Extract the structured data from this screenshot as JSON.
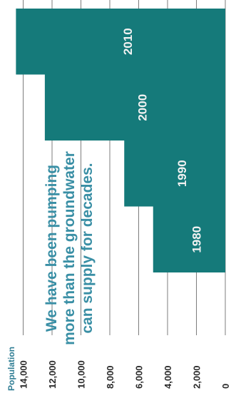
{
  "chart_data": {
    "type": "bar",
    "orientation": "horizontal",
    "ylabel": "Population",
    "ylim": [
      0,
      14000
    ],
    "yticks": [
      0,
      2000,
      4000,
      6000,
      8000,
      10000,
      12000,
      14000
    ],
    "ytick_labels": [
      "0",
      "2,000",
      "4,000",
      "6,000",
      "8,000",
      "10,000",
      "12,000",
      "14,000"
    ],
    "categories": [
      "1980",
      "1990",
      "2000",
      "2010"
    ],
    "values": [
      5000,
      7000,
      12500,
      14500
    ],
    "bar_color": "#157a7a",
    "grid": true,
    "annotation": [
      "We have been pumping",
      "more than the groundwater",
      "can supply for decades."
    ],
    "annotation_color": "#3a8fa5"
  }
}
